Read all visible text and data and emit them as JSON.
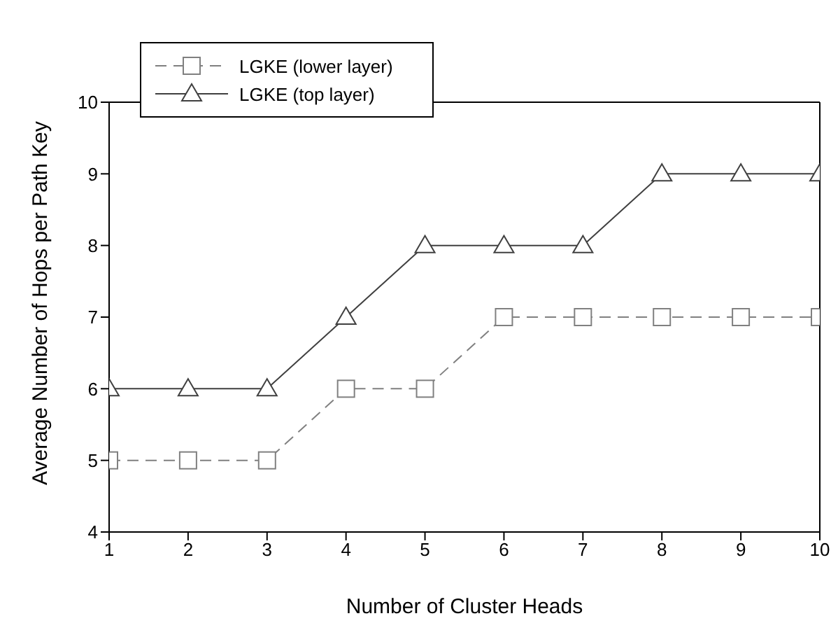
{
  "chart_data": {
    "type": "line",
    "xlabel": "Number of Cluster Heads",
    "ylabel": "Average Number of Hops per Path Key",
    "x": [
      1,
      2,
      3,
      4,
      5,
      6,
      7,
      8,
      9,
      10
    ],
    "series": [
      {
        "name": "LGKE (lower layer)",
        "color": "#808080",
        "marker": "square",
        "line_style": "dashed",
        "values": [
          5,
          5,
          5,
          6,
          6,
          7,
          7,
          7,
          7,
          7
        ]
      },
      {
        "name": "LGKE (top layer)",
        "color": "#404040",
        "marker": "triangle",
        "line_style": "solid",
        "values": [
          6,
          6,
          6,
          7,
          8,
          8,
          8,
          9,
          9,
          9
        ]
      }
    ],
    "xlim": [
      1,
      10
    ],
    "xticks": [
      1,
      2,
      3,
      4,
      5,
      6,
      7,
      8,
      9,
      10
    ],
    "ylim": [
      4,
      10
    ],
    "yticks": [
      4,
      5,
      6,
      7,
      8,
      9,
      10
    ],
    "grid": false,
    "legend": "top left"
  }
}
